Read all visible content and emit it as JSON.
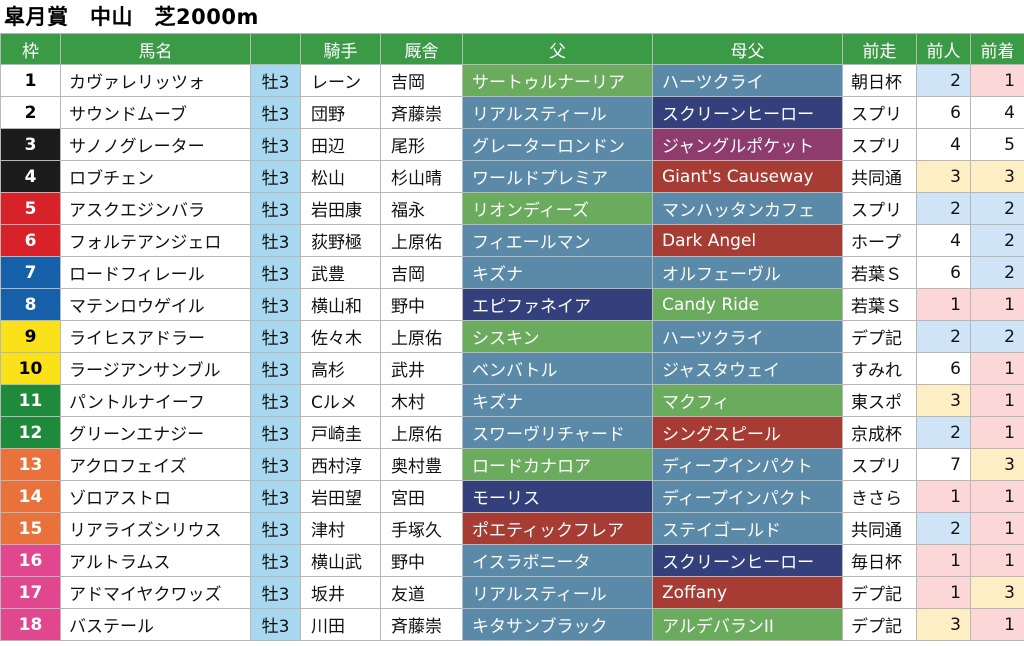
{
  "title": "皐月賞　中山　芝2000m",
  "headers": [
    "枠",
    "馬名",
    "",
    "騎手",
    "厩舎",
    "父",
    "母父",
    "前走",
    "前人",
    "前着"
  ],
  "rows": [
    {
      "waku": "1",
      "name": "カヴァレリッツォ",
      "sex": "牡3",
      "jockey": "レーン",
      "stable": "吉岡",
      "sire": "サートゥルナーリア",
      "dam_sire": "ハーツクライ",
      "prev_race": "朝日杯",
      "prev_pop": "2",
      "prev_finish": "1",
      "waku_bg": "#ffffff",
      "waku_fg": "#000000",
      "sire_bg": "#6aab5e",
      "dam_bg": "#5b8aa8",
      "pop_bg": "#cfe4f7",
      "fin_bg": "#fbd7d7"
    },
    {
      "waku": "2",
      "name": "サウンドムーブ",
      "sex": "牡3",
      "jockey": "団野",
      "stable": "斉藤崇",
      "sire": "リアルスティール",
      "dam_sire": "スクリーンヒーロー",
      "prev_race": "スプリ",
      "prev_pop": "6",
      "prev_finish": "4",
      "waku_bg": "#ffffff",
      "waku_fg": "#000000",
      "sire_bg": "#5b8aa8",
      "dam_bg": "#33407c",
      "pop_bg": "#ffffff",
      "fin_bg": "#ffffff"
    },
    {
      "waku": "3",
      "name": "サノノグレーター",
      "sex": "牡3",
      "jockey": "田辺",
      "stable": "尾形",
      "sire": "グレーターロンドン",
      "dam_sire": "ジャングルポケット",
      "prev_race": "スプリ",
      "prev_pop": "4",
      "prev_finish": "5",
      "waku_bg": "#1c1c1c",
      "waku_fg": "#ffffff",
      "sire_bg": "#5b8aa8",
      "dam_bg": "#8e3b6e",
      "pop_bg": "#ffffff",
      "fin_bg": "#ffffff"
    },
    {
      "waku": "4",
      "name": "ロブチェン",
      "sex": "牡3",
      "jockey": "松山",
      "stable": "杉山晴",
      "sire": "ワールドプレミア",
      "dam_sire": "Giant's Causeway",
      "prev_race": "共同通",
      "prev_pop": "3",
      "prev_finish": "3",
      "waku_bg": "#1c1c1c",
      "waku_fg": "#ffffff",
      "sire_bg": "#5b8aa8",
      "dam_bg": "#a63c34",
      "pop_bg": "#fdeec4",
      "fin_bg": "#fdeec4"
    },
    {
      "waku": "5",
      "name": "アスクエジンバラ",
      "sex": "牡3",
      "jockey": "岩田康",
      "stable": "福永",
      "sire": "リオンディーズ",
      "dam_sire": "マンハッタンカフェ",
      "prev_race": "スプリ",
      "prev_pop": "2",
      "prev_finish": "2",
      "waku_bg": "#d7222a",
      "waku_fg": "#ffffff",
      "sire_bg": "#6aab5e",
      "dam_bg": "#5b8aa8",
      "pop_bg": "#cfe4f7",
      "fin_bg": "#cfe4f7"
    },
    {
      "waku": "6",
      "name": "フォルテアンジェロ",
      "sex": "牡3",
      "jockey": "荻野極",
      "stable": "上原佑",
      "sire": "フィエールマン",
      "dam_sire": "Dark Angel",
      "prev_race": "ホープ",
      "prev_pop": "4",
      "prev_finish": "2",
      "waku_bg": "#d7222a",
      "waku_fg": "#ffffff",
      "sire_bg": "#5b8aa8",
      "dam_bg": "#a63c34",
      "pop_bg": "#ffffff",
      "fin_bg": "#cfe4f7"
    },
    {
      "waku": "7",
      "name": "ロードフィレール",
      "sex": "牡3",
      "jockey": "武豊",
      "stable": "吉岡",
      "sire": "キズナ",
      "dam_sire": "オルフェーヴル",
      "prev_race": "若葉Ｓ",
      "prev_pop": "6",
      "prev_finish": "2",
      "waku_bg": "#1560a8",
      "waku_fg": "#ffffff",
      "sire_bg": "#5b8aa8",
      "dam_bg": "#5b8aa8",
      "pop_bg": "#ffffff",
      "fin_bg": "#cfe4f7"
    },
    {
      "waku": "8",
      "name": "マテンロウゲイル",
      "sex": "牡3",
      "jockey": "横山和",
      "stable": "野中",
      "sire": "エピファネイア",
      "dam_sire": "Candy Ride",
      "prev_race": "若葉Ｓ",
      "prev_pop": "1",
      "prev_finish": "1",
      "waku_bg": "#1560a8",
      "waku_fg": "#ffffff",
      "sire_bg": "#33407c",
      "dam_bg": "#6aab5e",
      "pop_bg": "#fbd7d7",
      "fin_bg": "#fbd7d7"
    },
    {
      "waku": "9",
      "name": "ライヒスアドラー",
      "sex": "牡3",
      "jockey": "佐々木",
      "stable": "上原佑",
      "sire": "シスキン",
      "dam_sire": "ハーツクライ",
      "prev_race": "デプ記",
      "prev_pop": "2",
      "prev_finish": "2",
      "waku_bg": "#fbe11a",
      "waku_fg": "#000000",
      "sire_bg": "#6aab5e",
      "dam_bg": "#5b8aa8",
      "pop_bg": "#cfe4f7",
      "fin_bg": "#cfe4f7"
    },
    {
      "waku": "10",
      "name": "ラージアンサンブル",
      "sex": "牡3",
      "jockey": "高杉",
      "stable": "武井",
      "sire": "ベンバトル",
      "dam_sire": "ジャスタウェイ",
      "prev_race": "すみれ",
      "prev_pop": "6",
      "prev_finish": "1",
      "waku_bg": "#fbe11a",
      "waku_fg": "#000000",
      "sire_bg": "#5b8aa8",
      "dam_bg": "#5b8aa8",
      "pop_bg": "#ffffff",
      "fin_bg": "#fbd7d7"
    },
    {
      "waku": "11",
      "name": "パントルナイーフ",
      "sex": "牡3",
      "jockey": "Cルメ",
      "stable": "木村",
      "sire": "キズナ",
      "dam_sire": "マクフィ",
      "prev_race": "東スポ",
      "prev_pop": "3",
      "prev_finish": "1",
      "waku_bg": "#1f8a3c",
      "waku_fg": "#ffffff",
      "sire_bg": "#5b8aa8",
      "dam_bg": "#6aab5e",
      "pop_bg": "#fdeec4",
      "fin_bg": "#fbd7d7"
    },
    {
      "waku": "12",
      "name": "グリーンエナジー",
      "sex": "牡3",
      "jockey": "戸崎圭",
      "stable": "上原佑",
      "sire": "スワーヴリチャード",
      "dam_sire": "シングスピール",
      "prev_race": "京成杯",
      "prev_pop": "2",
      "prev_finish": "1",
      "waku_bg": "#1f8a3c",
      "waku_fg": "#ffffff",
      "sire_bg": "#5b8aa8",
      "dam_bg": "#a63c34",
      "pop_bg": "#cfe4f7",
      "fin_bg": "#fbd7d7"
    },
    {
      "waku": "13",
      "name": "アクロフェイズ",
      "sex": "牡3",
      "jockey": "西村淳",
      "stable": "奥村豊",
      "sire": "ロードカナロア",
      "dam_sire": "ディープインパクト",
      "prev_race": "スプリ",
      "prev_pop": "7",
      "prev_finish": "3",
      "waku_bg": "#e8713c",
      "waku_fg": "#ffffff",
      "sire_bg": "#6aab5e",
      "dam_bg": "#5b8aa8",
      "pop_bg": "#ffffff",
      "fin_bg": "#fdeec4"
    },
    {
      "waku": "14",
      "name": "ゾロアストロ",
      "sex": "牡3",
      "jockey": "岩田望",
      "stable": "宮田",
      "sire": "モーリス",
      "dam_sire": "ディープインパクト",
      "prev_race": "きさら",
      "prev_pop": "1",
      "prev_finish": "1",
      "waku_bg": "#e8713c",
      "waku_fg": "#ffffff",
      "sire_bg": "#33407c",
      "dam_bg": "#5b8aa8",
      "pop_bg": "#fbd7d7",
      "fin_bg": "#fbd7d7"
    },
    {
      "waku": "15",
      "name": "リアライズシリウス",
      "sex": "牡3",
      "jockey": "津村",
      "stable": "手塚久",
      "sire": "ポエティックフレア",
      "dam_sire": "ステイゴールド",
      "prev_race": "共同通",
      "prev_pop": "2",
      "prev_finish": "1",
      "waku_bg": "#e8713c",
      "waku_fg": "#ffffff",
      "sire_bg": "#a63c34",
      "dam_bg": "#5b8aa8",
      "pop_bg": "#cfe4f7",
      "fin_bg": "#fbd7d7"
    },
    {
      "waku": "16",
      "name": "アルトラムス",
      "sex": "牡3",
      "jockey": "横山武",
      "stable": "野中",
      "sire": "イスラボニータ",
      "dam_sire": "スクリーンヒーロー",
      "prev_race": "毎日杯",
      "prev_pop": "1",
      "prev_finish": "1",
      "waku_bg": "#e0478f",
      "waku_fg": "#ffffff",
      "sire_bg": "#5b8aa8",
      "dam_bg": "#33407c",
      "pop_bg": "#fbd7d7",
      "fin_bg": "#fbd7d7"
    },
    {
      "waku": "17",
      "name": "アドマイヤクワッズ",
      "sex": "牡3",
      "jockey": "坂井",
      "stable": "友道",
      "sire": "リアルスティール",
      "dam_sire": "Zoffany",
      "prev_race": "デプ記",
      "prev_pop": "1",
      "prev_finish": "3",
      "waku_bg": "#e0478f",
      "waku_fg": "#ffffff",
      "sire_bg": "#5b8aa8",
      "dam_bg": "#a63c34",
      "pop_bg": "#fbd7d7",
      "fin_bg": "#fdeec4"
    },
    {
      "waku": "18",
      "name": "バステール",
      "sex": "牡3",
      "jockey": "川田",
      "stable": "斉藤崇",
      "sire": "キタサンブラック",
      "dam_sire": "アルデバランII",
      "prev_race": "デプ記",
      "prev_pop": "3",
      "prev_finish": "1",
      "waku_bg": "#e0478f",
      "waku_fg": "#ffffff",
      "sire_bg": "#5b8aa8",
      "dam_bg": "#6aab5e",
      "pop_bg": "#fdeec4",
      "fin_bg": "#fbd7d7"
    }
  ]
}
